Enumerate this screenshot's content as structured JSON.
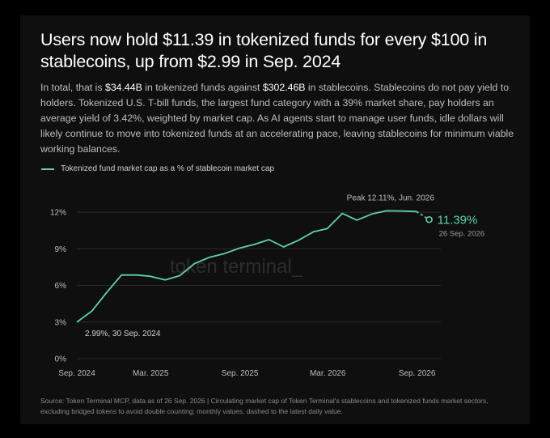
{
  "title": "Users now hold $11.39 in tokenized funds for every $100 in stablecoins, up from $2.99 in Sep. 2024",
  "body": {
    "p1": "In total, that is ",
    "v1": "$34.44B",
    "p2": " in tokenized funds against ",
    "v2": "$302.46B",
    "p3": " in stablecoins. Stablecoins do not pay yield to holders. Tokenized U.S. T-bill funds, the largest fund category with a 39% market share, pay holders an average yield of 3.42%, weighted by market cap. As AI agents start to manage user funds, idle dollars will likely continue to move into tokenized funds at an accelerating pace, leaving stablecoins for minimum viable working balances."
  },
  "watermark": "token terminal_",
  "footer": "Source: Token Terminal MCP, data as of 26 Sep. 2026 | Circulating market cap of Token Terminal's stablecoins and tokenized funds market sectors, excluding bridged tokens to avoid double counting; monthly values, dashed to the latest daily value.",
  "colors": {
    "line": "#5fd3a3",
    "grid": "#2a2a2a",
    "text": "#bdbdbd"
  },
  "chart_data": {
    "type": "line",
    "legend_position": "top-left",
    "grid": true,
    "ylim": [
      0,
      12.8
    ],
    "xlim": [
      "2024-09-30",
      "2026-10-20"
    ],
    "yticks": [
      {
        "value": 0,
        "label": "0%"
      },
      {
        "value": 3,
        "label": "3%"
      },
      {
        "value": 6,
        "label": "6%"
      },
      {
        "value": 9,
        "label": "9%"
      },
      {
        "value": 12,
        "label": "12%"
      }
    ],
    "xticks": [
      {
        "date": "2024-09-30",
        "label": "Sep. 2024"
      },
      {
        "date": "2025-03-01",
        "label": "Mar. 2025"
      },
      {
        "date": "2025-09-01",
        "label": "Sep. 2025"
      },
      {
        "date": "2026-03-01",
        "label": "Mar. 2026"
      },
      {
        "date": "2026-09-01",
        "label": "Sep. 2026"
      }
    ],
    "series": [
      {
        "name": "Tokenized fund market cap as a % of stablecoin market cap",
        "points": [
          {
            "date": "2024-09-30",
            "value": 2.99
          },
          {
            "date": "2024-10-31",
            "value": 3.9
          },
          {
            "date": "2024-11-30",
            "value": 5.4
          },
          {
            "date": "2024-12-31",
            "value": 6.85
          },
          {
            "date": "2025-01-31",
            "value": 6.85
          },
          {
            "date": "2025-02-28",
            "value": 6.75
          },
          {
            "date": "2025-03-31",
            "value": 6.45
          },
          {
            "date": "2025-04-30",
            "value": 6.8
          },
          {
            "date": "2025-05-31",
            "value": 7.8
          },
          {
            "date": "2025-06-30",
            "value": 8.3
          },
          {
            "date": "2025-07-31",
            "value": 8.6
          },
          {
            "date": "2025-08-31",
            "value": 9.05
          },
          {
            "date": "2025-09-30",
            "value": 9.35
          },
          {
            "date": "2025-10-31",
            "value": 9.75
          },
          {
            "date": "2025-11-30",
            "value": 9.15
          },
          {
            "date": "2025-12-31",
            "value": 9.7
          },
          {
            "date": "2026-01-31",
            "value": 10.4
          },
          {
            "date": "2026-02-28",
            "value": 10.65
          },
          {
            "date": "2026-03-31",
            "value": 11.9
          },
          {
            "date": "2026-04-30",
            "value": 11.35
          },
          {
            "date": "2026-05-31",
            "value": 11.85
          },
          {
            "date": "2026-06-30",
            "value": 12.11
          },
          {
            "date": "2026-07-31",
            "value": 12.1
          },
          {
            "date": "2026-08-31",
            "value": 12.05
          }
        ],
        "dashed_to": {
          "date": "2026-09-26",
          "value": 11.39
        }
      }
    ],
    "annotations": {
      "start": "2.99%, 30 Sep. 2024",
      "peak": "Peak 12.11%, Jun. 2026",
      "latest_value": "11.39%",
      "latest_date": "26 Sep. 2026"
    }
  }
}
